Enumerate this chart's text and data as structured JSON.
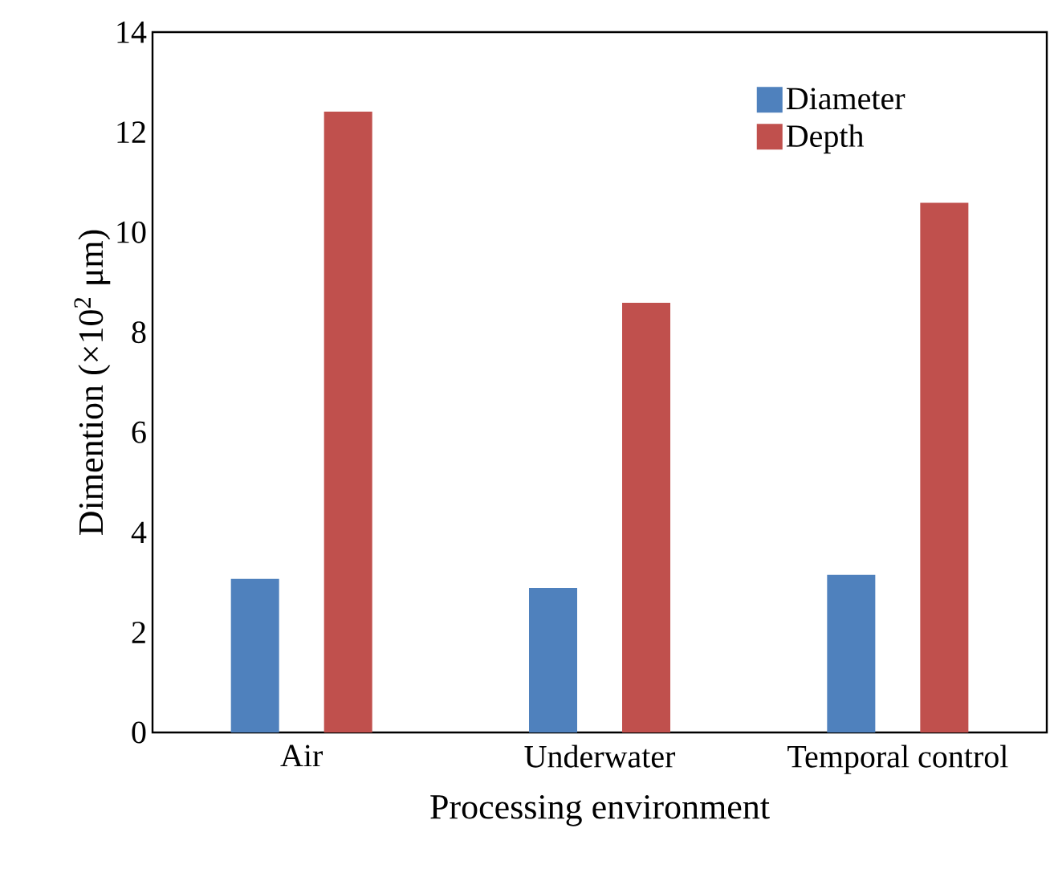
{
  "chart_data": {
    "type": "bar",
    "xlabel": "Processing environment",
    "ylabel": "Dimention (×10$^{2}$ μm)",
    "categories": [
      "Air",
      "Underwater",
      "Temporal control"
    ],
    "series": [
      {
        "name": "Diameter",
        "color": "#4f81bd",
        "values": [
          3.07,
          2.89,
          3.15
        ]
      },
      {
        "name": "Depth",
        "color": "#c0504d",
        "values": [
          12.41,
          8.59,
          10.59
        ]
      }
    ],
    "ylim": [
      0,
      14
    ],
    "yticks": [
      0,
      2,
      4,
      6,
      8,
      10,
      12,
      14
    ],
    "legend": "top right"
  }
}
